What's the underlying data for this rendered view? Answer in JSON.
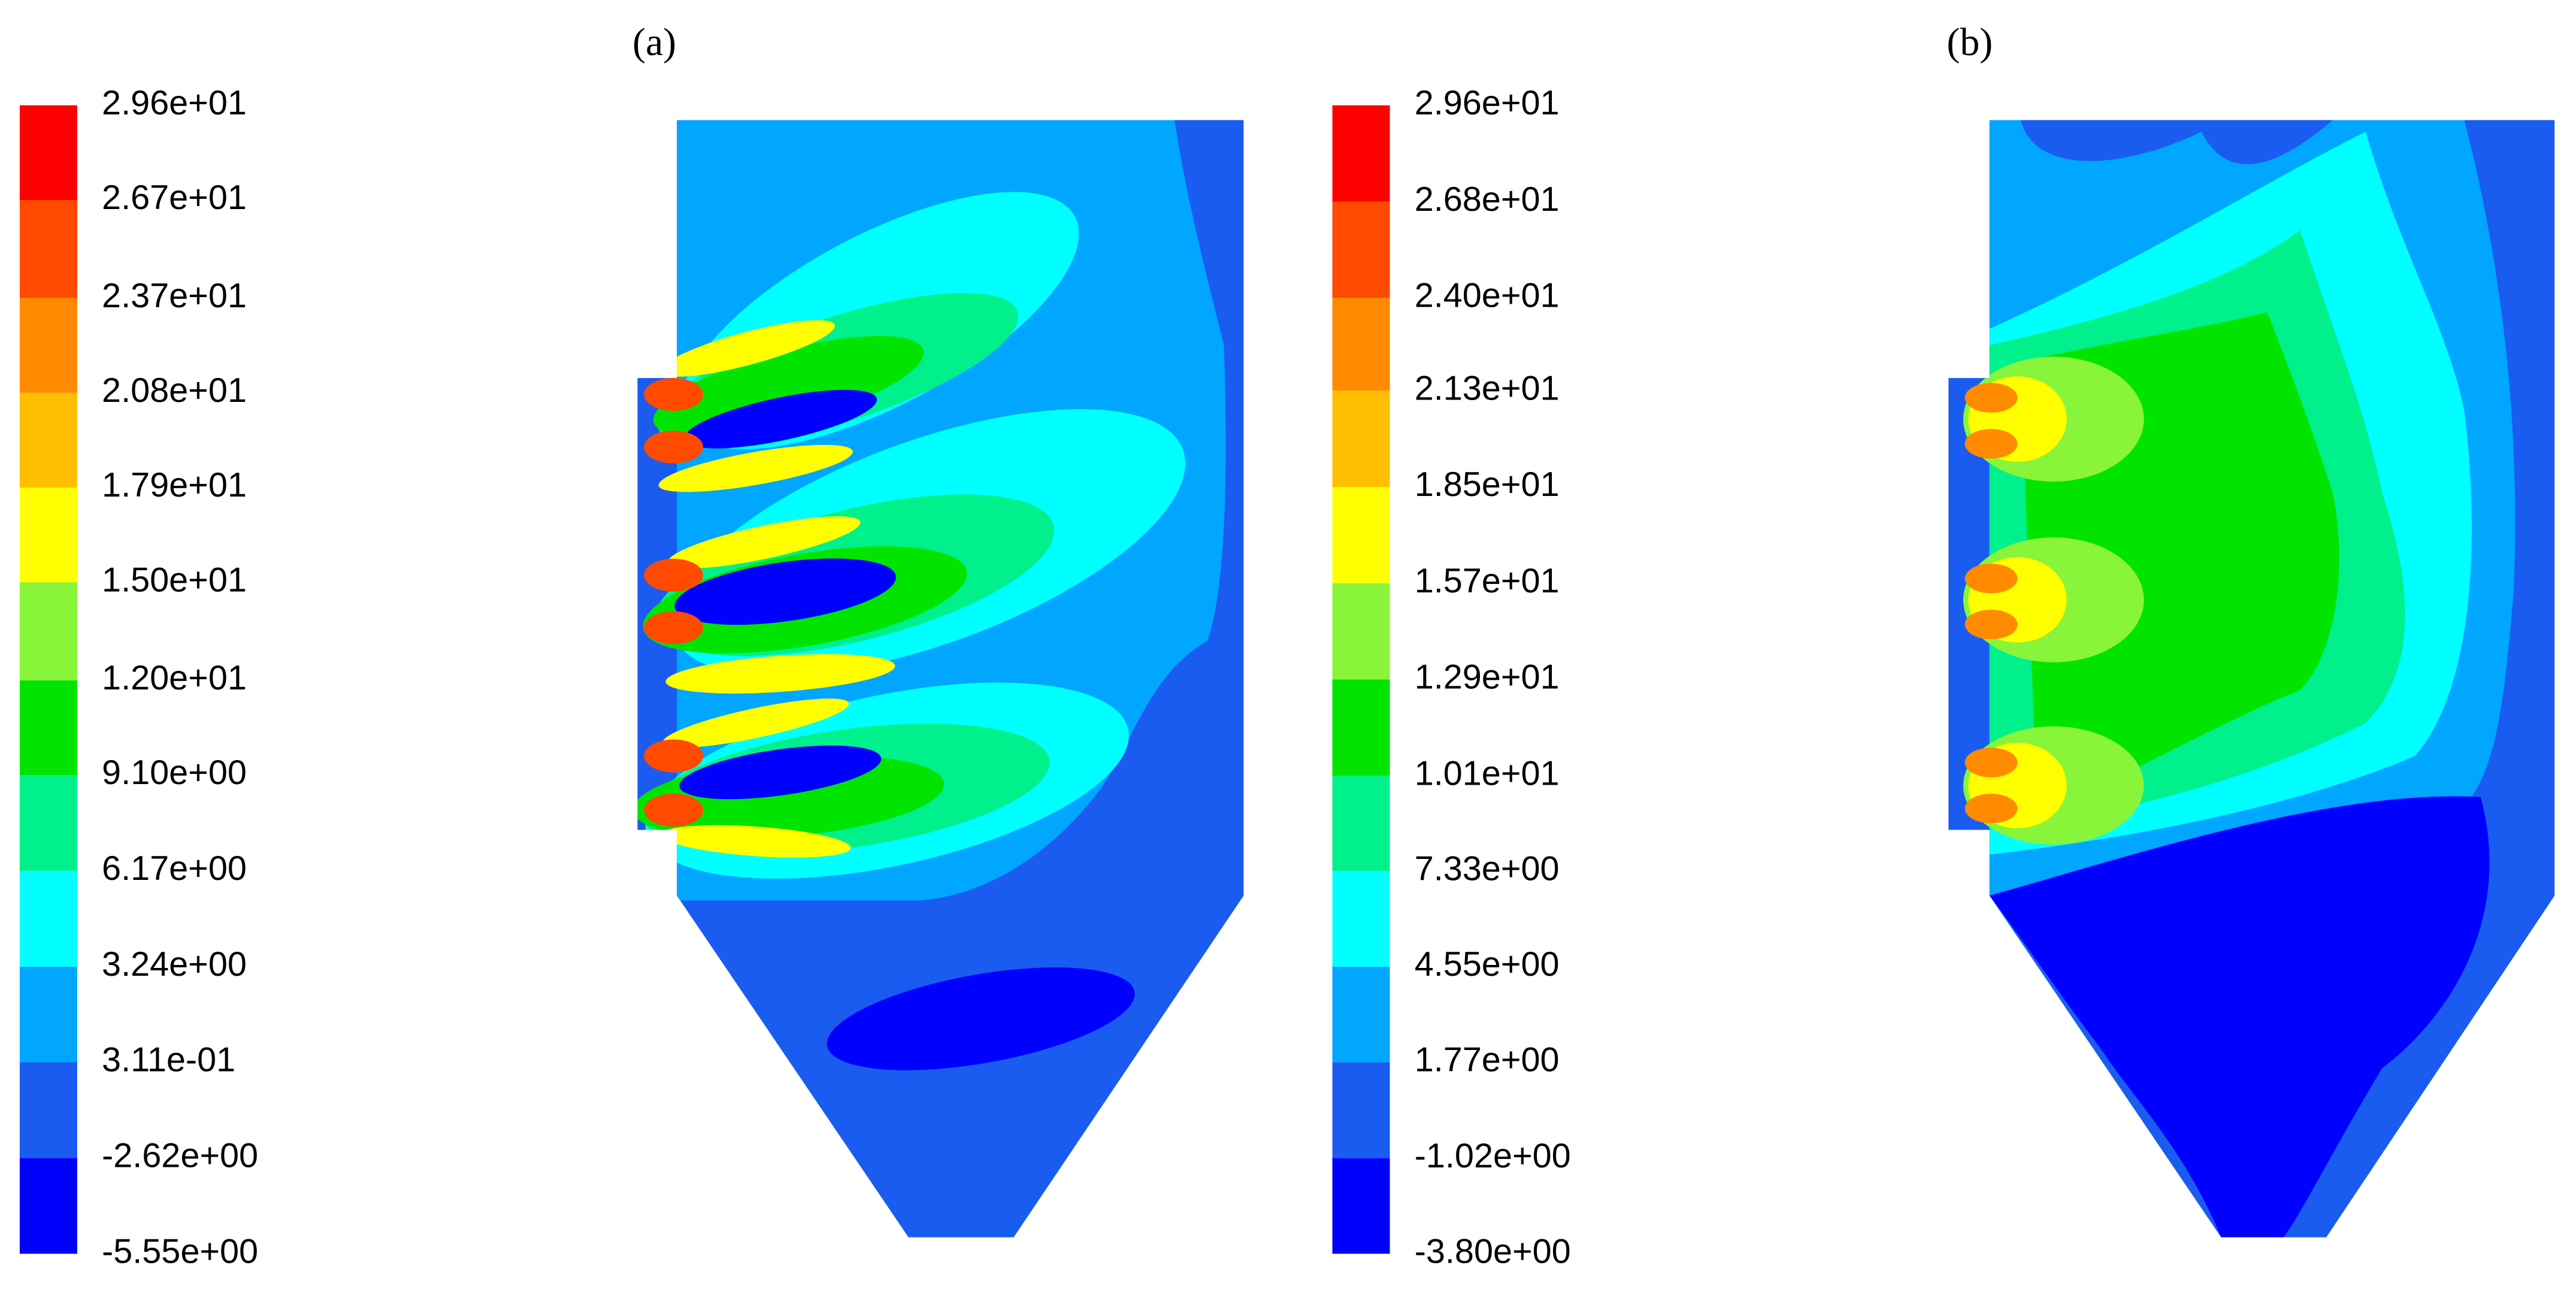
{
  "chart_data": [
    {
      "type": "contour",
      "label": "(a)",
      "colors": [
        "#0000ff",
        "#1a5cf0",
        "#00a6ff",
        "#00ffff",
        "#00f08c",
        "#00e400",
        "#88f43a",
        "#ffff00",
        "#ffbf00",
        "#ff8a00",
        "#ff4a00",
        "#ff0000"
      ],
      "zlim": [
        -5.55,
        29.6
      ],
      "ticks": [
        {
          "value": -5.55,
          "label": "-5.55e+00"
        },
        {
          "value": -2.62,
          "label": "-2.62e+00"
        },
        {
          "value": 0.311,
          "label": "3.11e-01"
        },
        {
          "value": 3.24,
          "label": "3.24e+00"
        },
        {
          "value": 6.17,
          "label": "6.17e+00"
        },
        {
          "value": 9.1,
          "label": "9.10e+00"
        },
        {
          "value": 12.0,
          "label": "1.20e+01"
        },
        {
          "value": 15.0,
          "label": "1.50e+01"
        },
        {
          "value": 17.9,
          "label": "1.79e+01"
        },
        {
          "value": 20.8,
          "label": "2.08e+01"
        },
        {
          "value": 23.7,
          "label": "2.37e+01"
        },
        {
          "value": 26.7,
          "label": "2.67e+01"
        },
        {
          "value": 29.6,
          "label": "2.96e+01"
        }
      ]
    },
    {
      "type": "contour",
      "label": "(b)",
      "colors": [
        "#0000ff",
        "#1a5cf0",
        "#00a6ff",
        "#00ffff",
        "#00f08c",
        "#00e400",
        "#88f43a",
        "#ffff00",
        "#ffbf00",
        "#ff8a00",
        "#ff4a00",
        "#ff0000"
      ],
      "zlim": [
        -3.8,
        29.6
      ],
      "ticks": [
        {
          "value": -3.8,
          "label": "-3.80e+00"
        },
        {
          "value": -1.02,
          "label": "-1.02e+00"
        },
        {
          "value": 1.77,
          "label": "1.77e+00"
        },
        {
          "value": 4.55,
          "label": "4.55e+00"
        },
        {
          "value": 7.33,
          "label": "7.33e+00"
        },
        {
          "value": 10.1,
          "label": "1.01e+01"
        },
        {
          "value": 12.9,
          "label": "1.29e+01"
        },
        {
          "value": 15.7,
          "label": "1.57e+01"
        },
        {
          "value": 18.5,
          "label": "1.85e+01"
        },
        {
          "value": 21.3,
          "label": "2.13e+01"
        },
        {
          "value": 24.0,
          "label": "2.40e+01"
        },
        {
          "value": 26.8,
          "label": "2.68e+01"
        },
        {
          "value": 29.6,
          "label": "2.96e+01"
        }
      ]
    }
  ]
}
